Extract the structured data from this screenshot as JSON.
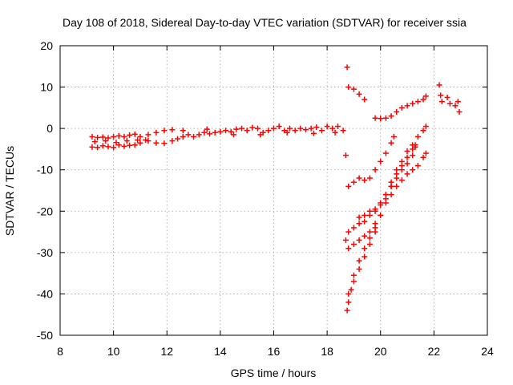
{
  "chart_data": {
    "type": "scatter",
    "title": "Day 108 of 2018, Sidereal Day-to-day VTEC variation (SDTVAR) for receiver ssia",
    "xlabel": "GPS time / hours",
    "ylabel": "SDTVAR / TECUs",
    "xlim": [
      8,
      24
    ],
    "ylim": [
      -50,
      20
    ],
    "x_ticks": [
      8,
      10,
      12,
      14,
      16,
      18,
      20,
      22,
      24
    ],
    "y_ticks": [
      -50,
      -40,
      -30,
      -20,
      -10,
      0,
      10,
      20
    ],
    "grid": true,
    "marker": "+",
    "color": "#ff0000",
    "series": [
      {
        "points": [
          [
            9.2,
            -2.0
          ],
          [
            9.4,
            -2.2
          ],
          [
            9.6,
            -2.1
          ],
          [
            9.8,
            -2.3
          ],
          [
            10.0,
            -2.0
          ],
          [
            10.2,
            -1.8
          ],
          [
            10.4,
            -2.0
          ],
          [
            10.6,
            -1.6
          ],
          [
            10.8,
            -1.4
          ],
          [
            11.0,
            -2.0
          ],
          [
            11.3,
            -1.5
          ],
          [
            11.6,
            -1.0
          ],
          [
            11.9,
            -0.5
          ],
          [
            12.2,
            -0.3
          ],
          [
            9.2,
            -4.5
          ],
          [
            9.4,
            -4.6
          ],
          [
            9.6,
            -4.2
          ],
          [
            9.8,
            -4.4
          ],
          [
            10.0,
            -4.6
          ],
          [
            10.2,
            -4.0
          ],
          [
            10.4,
            -4.3
          ],
          [
            10.6,
            -4.1
          ],
          [
            10.8,
            -4.0
          ],
          [
            11.0,
            -3.5
          ],
          [
            11.3,
            -3.0
          ],
          [
            11.6,
            -3.5
          ],
          [
            11.9,
            -3.6
          ],
          [
            12.2,
            -3.0
          ],
          [
            9.3,
            -3.2
          ],
          [
            9.7,
            -3.0
          ],
          [
            10.1,
            -3.4
          ],
          [
            10.5,
            -3.0
          ],
          [
            10.9,
            -2.8
          ],
          [
            11.2,
            -2.8
          ],
          [
            12.4,
            -2.5
          ],
          [
            12.6,
            -2.0
          ],
          [
            12.8,
            -1.5
          ],
          [
            13.0,
            -2.0
          ],
          [
            13.2,
            -1.5
          ],
          [
            13.4,
            -1.0
          ],
          [
            13.6,
            -1.3
          ],
          [
            13.8,
            -1.0
          ],
          [
            14.0,
            -0.8
          ],
          [
            14.2,
            -0.5
          ],
          [
            14.4,
            -0.8
          ],
          [
            14.6,
            -0.2
          ],
          [
            14.8,
            0.0
          ],
          [
            15.0,
            -0.5
          ],
          [
            15.2,
            0.2
          ],
          [
            15.4,
            0.0
          ],
          [
            15.6,
            -1.0
          ],
          [
            15.8,
            -0.5
          ],
          [
            16.0,
            0.0
          ],
          [
            16.2,
            0.5
          ],
          [
            16.4,
            -0.5
          ],
          [
            16.6,
            0.0
          ],
          [
            16.8,
            -0.5
          ],
          [
            17.0,
            0.0
          ],
          [
            17.2,
            -0.3
          ],
          [
            17.4,
            0.0
          ],
          [
            17.6,
            0.3
          ],
          [
            17.8,
            -0.5
          ],
          [
            18.0,
            0.5
          ],
          [
            18.2,
            0.0
          ],
          [
            18.4,
            0.5
          ],
          [
            18.6,
            -0.5
          ],
          [
            12.6,
            -0.5
          ],
          [
            13.5,
            -0.2
          ],
          [
            14.5,
            -1.5
          ],
          [
            15.5,
            -1.5
          ],
          [
            16.5,
            -1.0
          ],
          [
            17.5,
            -1.2
          ],
          [
            18.3,
            -1.0
          ],
          [
            18.75,
            14.8
          ],
          [
            18.7,
            -6.5
          ],
          [
            18.7,
            -27.0
          ],
          [
            18.75,
            -44.0
          ],
          [
            18.8,
            10.0
          ],
          [
            19.0,
            9.5
          ],
          [
            19.2,
            8.3
          ],
          [
            19.4,
            7.0
          ],
          [
            19.8,
            2.5
          ],
          [
            20.0,
            2.4
          ],
          [
            20.2,
            2.5
          ],
          [
            20.4,
            3.0
          ],
          [
            20.6,
            4.0
          ],
          [
            20.8,
            5.0
          ],
          [
            21.0,
            5.5
          ],
          [
            21.2,
            6.0
          ],
          [
            21.4,
            6.5
          ],
          [
            21.6,
            7.0
          ],
          [
            21.7,
            7.8
          ],
          [
            22.2,
            10.5
          ],
          [
            22.25,
            8.0
          ],
          [
            22.3,
            6.5
          ],
          [
            22.5,
            7.5
          ],
          [
            22.6,
            6.0
          ],
          [
            22.8,
            5.5
          ],
          [
            22.9,
            6.5
          ],
          [
            22.95,
            4.0
          ],
          [
            18.8,
            -14.0
          ],
          [
            19.0,
            -13.0
          ],
          [
            19.2,
            -12.0
          ],
          [
            19.4,
            -12.5
          ],
          [
            19.6,
            -12.0
          ],
          [
            19.8,
            -10.0
          ],
          [
            20.0,
            -8.0
          ],
          [
            20.2,
            -6.0
          ],
          [
            20.4,
            -3.5
          ],
          [
            20.5,
            -2.0
          ],
          [
            19.2,
            -21.5
          ],
          [
            19.4,
            -21.0
          ],
          [
            19.6,
            -20.0
          ],
          [
            19.8,
            -19.5
          ],
          [
            20.0,
            -18.5
          ],
          [
            20.2,
            -16.0
          ],
          [
            20.4,
            -13.0
          ],
          [
            20.6,
            -10.0
          ],
          [
            20.8,
            -8.0
          ],
          [
            21.0,
            -5.5
          ],
          [
            21.2,
            -4.0
          ],
          [
            21.4,
            -2.0
          ],
          [
            21.6,
            -0.5
          ],
          [
            21.7,
            0.5
          ],
          [
            18.8,
            -25.0
          ],
          [
            19.0,
            -24.0
          ],
          [
            19.2,
            -23.0
          ],
          [
            19.4,
            -22.5
          ],
          [
            19.6,
            -21.0
          ],
          [
            19.8,
            -20.0
          ],
          [
            20.0,
            -18.0
          ],
          [
            20.2,
            -16.0
          ],
          [
            20.4,
            -14.0
          ],
          [
            20.6,
            -12.0
          ],
          [
            20.8,
            -10.0
          ],
          [
            21.0,
            -8.5
          ],
          [
            21.2,
            -6.5
          ],
          [
            21.3,
            -4.5
          ],
          [
            18.8,
            -29.0
          ],
          [
            19.0,
            -28.0
          ],
          [
            19.2,
            -27.0
          ],
          [
            19.4,
            -26.0
          ],
          [
            19.6,
            -25.0
          ],
          [
            19.8,
            -23.0
          ],
          [
            20.0,
            -21.0
          ],
          [
            20.2,
            -18.0
          ],
          [
            20.4,
            -16.0
          ],
          [
            20.6,
            -14.0
          ],
          [
            20.8,
            -12.5
          ],
          [
            21.0,
            -11.0
          ],
          [
            21.2,
            -10.0
          ],
          [
            21.4,
            -9.0
          ],
          [
            21.6,
            -7.0
          ],
          [
            21.7,
            -6.0
          ],
          [
            18.8,
            -42.0
          ],
          [
            18.9,
            -39.0
          ],
          [
            19.0,
            -37.0
          ],
          [
            19.2,
            -34.0
          ],
          [
            19.4,
            -31.0
          ],
          [
            19.6,
            -28.0
          ],
          [
            19.8,
            -25.0
          ],
          [
            20.0,
            -21.0
          ],
          [
            20.2,
            -17.0
          ],
          [
            20.4,
            -14.0
          ],
          [
            20.6,
            -11.0
          ],
          [
            20.8,
            -9.0
          ],
          [
            21.0,
            -7.0
          ],
          [
            21.2,
            -5.0
          ],
          [
            21.3,
            -4.0
          ],
          [
            18.8,
            -40.0
          ],
          [
            19.0,
            -35.5
          ],
          [
            19.2,
            -32.0
          ],
          [
            19.4,
            -29.0
          ],
          [
            19.6,
            -26.5
          ],
          [
            19.8,
            -24.0
          ]
        ]
      }
    ]
  }
}
